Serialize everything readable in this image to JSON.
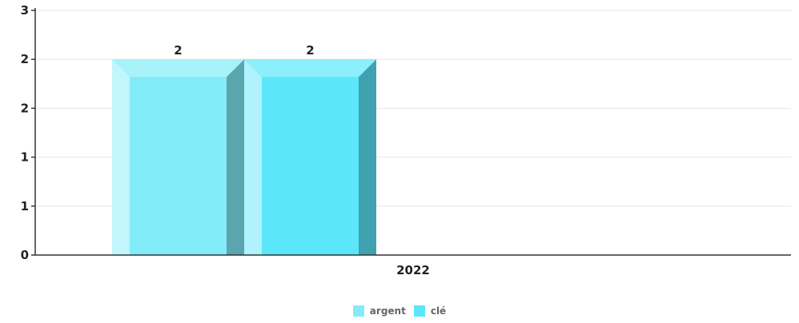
{
  "chart_data": {
    "type": "bar",
    "categories": [
      "2022"
    ],
    "series": [
      {
        "name": "argent",
        "values": [
          2
        ],
        "color": "#82ECF8"
      },
      {
        "name": "clé",
        "values": [
          2
        ],
        "color": "#5CE6FA"
      }
    ],
    "y_ticks": [
      {
        "value": 0,
        "label": "0"
      },
      {
        "value": 0.5,
        "label": "1"
      },
      {
        "value": 1,
        "label": "1"
      },
      {
        "value": 1.5,
        "label": "2"
      },
      {
        "value": 2,
        "label": "2"
      },
      {
        "value": 2.5,
        "label": "3"
      }
    ],
    "ylim": [
      0,
      2.5
    ],
    "grid": true,
    "legend_position": "bottom-center",
    "title": "",
    "xlabel": "",
    "ylabel": ""
  }
}
